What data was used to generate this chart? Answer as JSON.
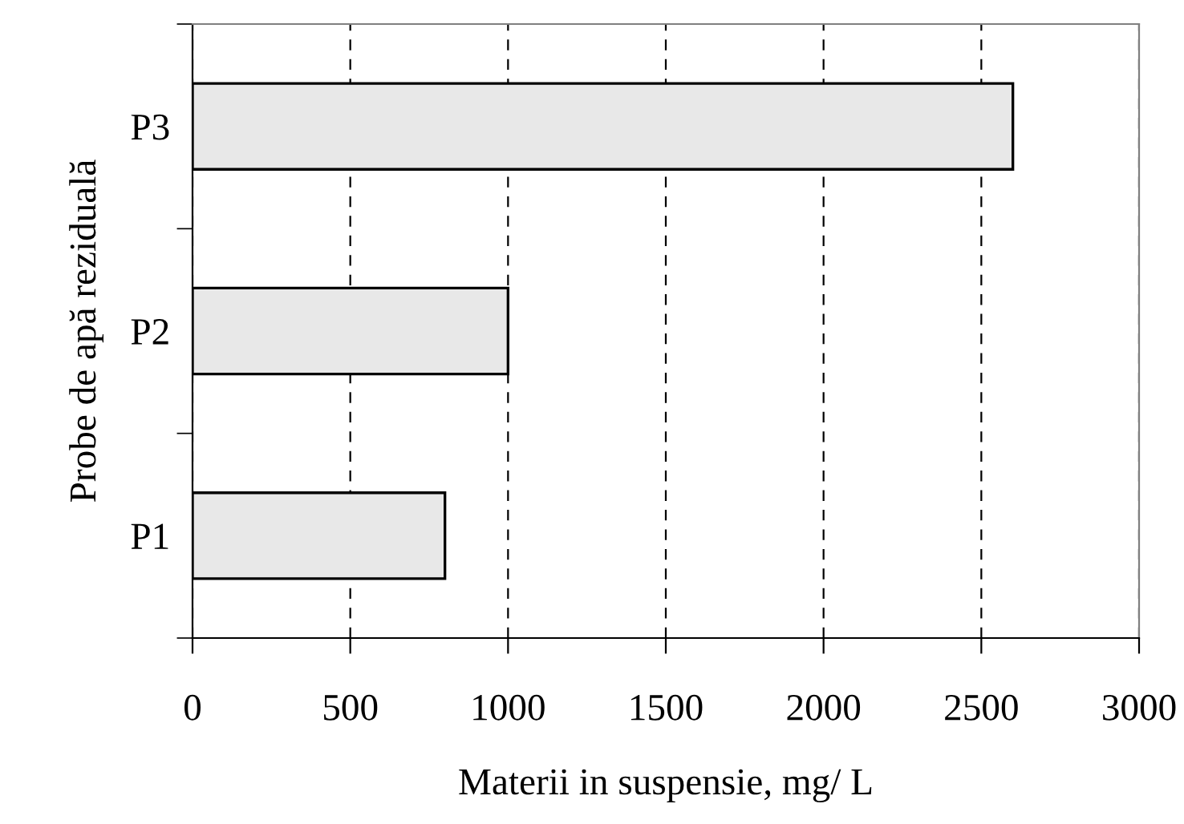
{
  "chart_data": {
    "type": "bar",
    "orientation": "horizontal",
    "categories": [
      "P3",
      "P2",
      "P1"
    ],
    "values": [
      2600,
      1000,
      800
    ],
    "color": "#e8e8e8",
    "xlim": [
      0,
      3000
    ],
    "xticks": [
      0,
      500,
      1000,
      1500,
      2000,
      2500,
      3000
    ],
    "xlabel": "Materii in suspensie, mg/ L",
    "ylabel": "Probe de apă reziduală",
    "grid": "x"
  }
}
